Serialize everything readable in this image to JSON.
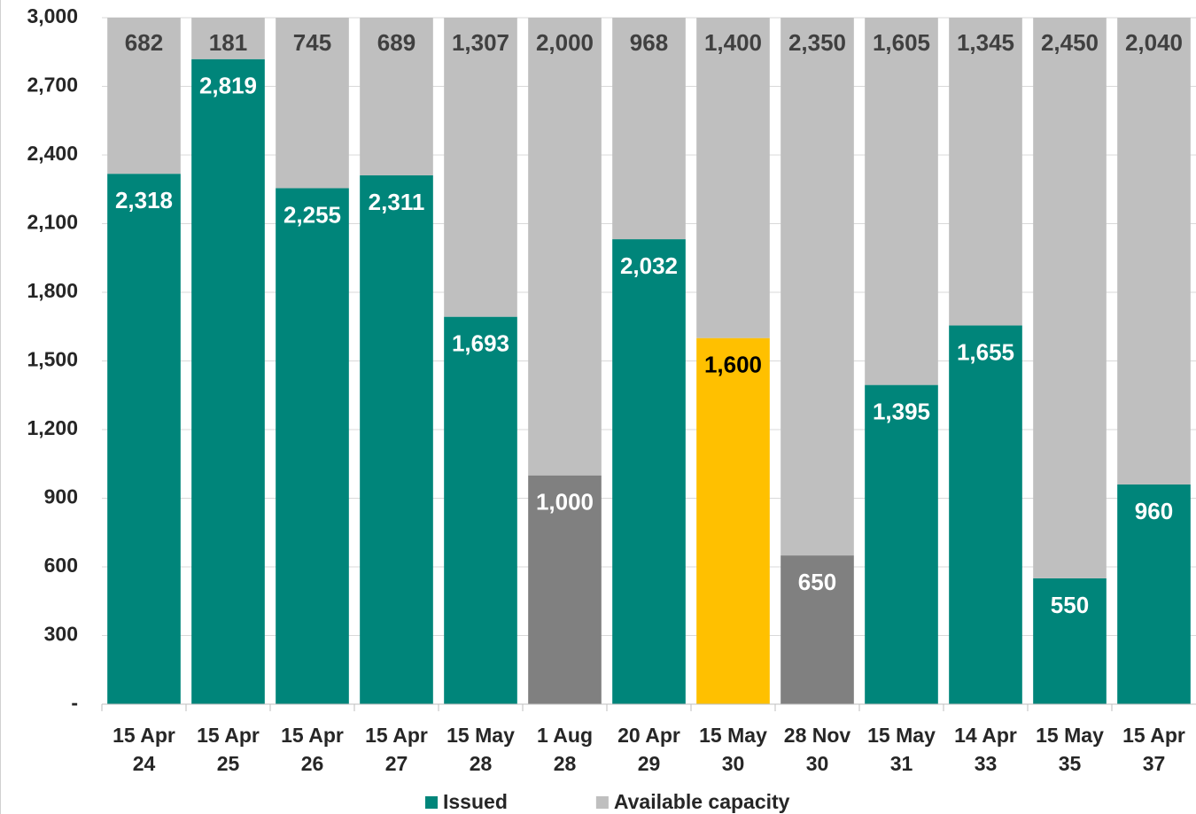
{
  "chart_data": {
    "type": "stacked_bar",
    "categories": [
      [
        "15 Apr",
        "24"
      ],
      [
        "15 Apr",
        "25"
      ],
      [
        "15 Apr",
        "26"
      ],
      [
        "15 Apr",
        "27"
      ],
      [
        "15 May",
        "28"
      ],
      [
        "1 Aug",
        "28"
      ],
      [
        "20 Apr",
        "29"
      ],
      [
        "15 May",
        "30"
      ],
      [
        "28 Nov",
        "30"
      ],
      [
        "15 May",
        "31"
      ],
      [
        "14 Apr",
        "33"
      ],
      [
        "15 May",
        "35"
      ],
      [
        "15 Apr",
        "37"
      ]
    ],
    "series": [
      {
        "name": "Issued",
        "color": "#00857a",
        "colors": [
          "#00857a",
          "#00857a",
          "#00857a",
          "#00857a",
          "#00857a",
          "#808080",
          "#00857a",
          "#ffc000",
          "#808080",
          "#00857a",
          "#00857a",
          "#00857a",
          "#00857a"
        ],
        "label_colors": [
          "#ffffff",
          "#ffffff",
          "#ffffff",
          "#ffffff",
          "#ffffff",
          "#ffffff",
          "#ffffff",
          "#000000",
          "#ffffff",
          "#ffffff",
          "#ffffff",
          "#ffffff",
          "#ffffff"
        ],
        "values": [
          2318,
          2819,
          2255,
          2311,
          1693,
          1000,
          2032,
          1600,
          650,
          1395,
          1655,
          550,
          960
        ],
        "value_labels": [
          "2,318",
          "2,819",
          "2,255",
          "2,311",
          "1,693",
          "1,000",
          "2,032",
          "1,600",
          "650",
          "1,395",
          "1,655",
          "550",
          "960"
        ]
      },
      {
        "name": "Available capacity",
        "color": "#bfbfbf",
        "label_color": "#404040",
        "values": [
          682,
          181,
          745,
          689,
          1307,
          2000,
          968,
          1400,
          2350,
          1605,
          1345,
          2450,
          2040
        ],
        "value_labels": [
          "682",
          "181",
          "745",
          "689",
          "1,307",
          "2,000",
          "968",
          "1,400",
          "2,350",
          "1,605",
          "1,345",
          "2,450",
          "2,040"
        ]
      }
    ],
    "ylim": [
      0,
      3000
    ],
    "yticks": [
      {
        "value": 0,
        "label": "-"
      },
      300,
      600,
      900,
      {
        "value": 1200,
        "label": "1,200"
      },
      {
        "value": 1500,
        "label": "1,500"
      },
      {
        "value": 1800,
        "label": "1,800"
      },
      {
        "value": 2100,
        "label": "2,100"
      },
      {
        "value": 2400,
        "label": "2,400"
      },
      {
        "value": 2700,
        "label": "2,700"
      },
      {
        "value": 3000,
        "label": "3,000"
      }
    ],
    "grid": true,
    "legend": "bottom"
  }
}
